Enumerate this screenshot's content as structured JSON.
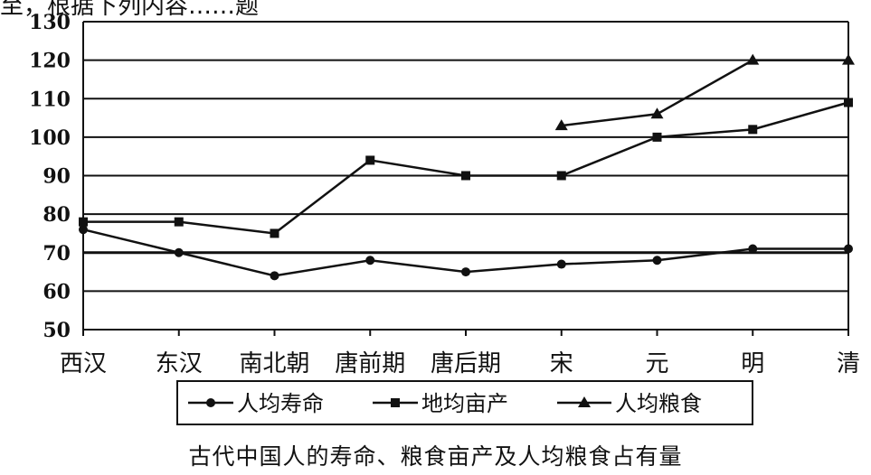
{
  "header_fragment": "至，根据下列内容……题",
  "chart_data": {
    "type": "line",
    "title": "古代中国人的寿命、粮食亩产及人均粮食占有量",
    "xlabel": "",
    "ylabel": "",
    "categories": [
      "西汉",
      "东汉",
      "南北朝",
      "唐前期",
      "唐后期",
      "宋",
      "元",
      "明",
      "清"
    ],
    "ylim": [
      50,
      130
    ],
    "yticks": [
      50,
      60,
      70,
      80,
      90,
      100,
      110,
      120,
      130
    ],
    "grid": true,
    "legend_position": "bottom",
    "series": [
      {
        "name": "人均寿命",
        "marker": "circle",
        "values": [
          76,
          70,
          64,
          68,
          65,
          67,
          68,
          71,
          71
        ]
      },
      {
        "name": "地均亩产",
        "marker": "square",
        "values": [
          78,
          78,
          75,
          94,
          90,
          90,
          100,
          102,
          109
        ]
      },
      {
        "name": "人均粮食",
        "marker": "triangle",
        "values": [
          null,
          null,
          null,
          null,
          null,
          103,
          106,
          120,
          120
        ]
      }
    ],
    "colors": {
      "line": "#111111",
      "grid": "#111111"
    }
  }
}
